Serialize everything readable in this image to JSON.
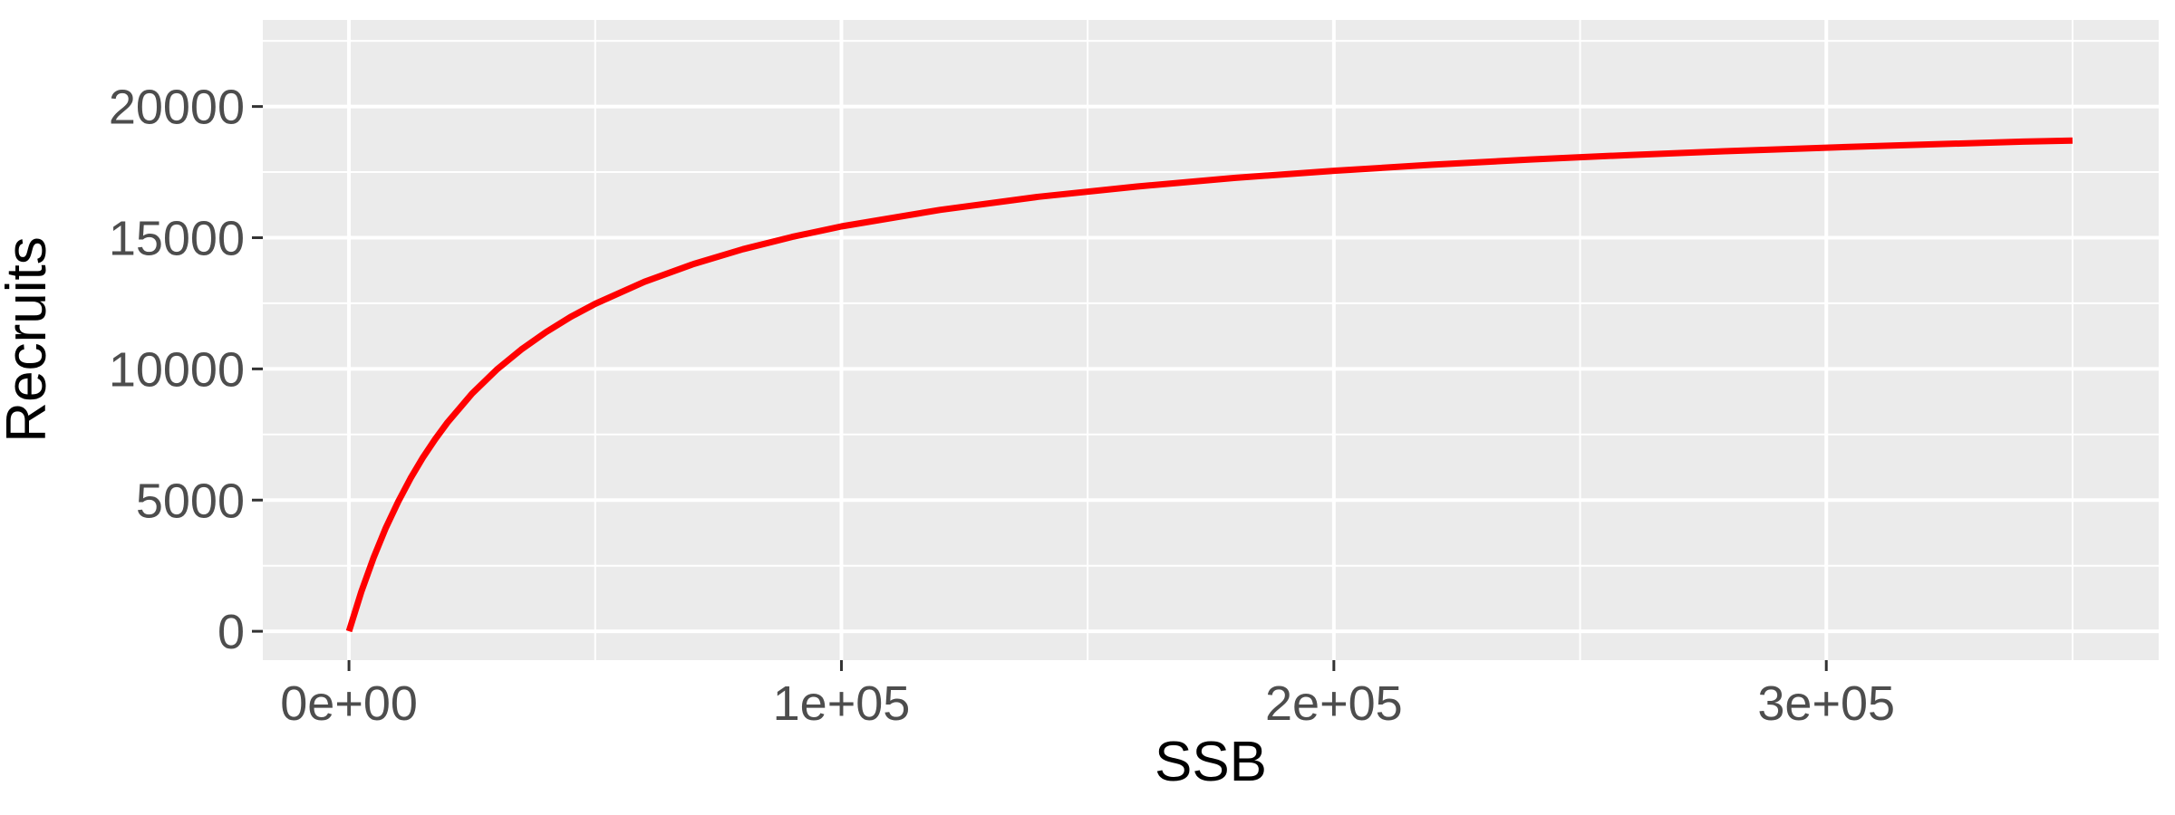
{
  "chart_data": {
    "type": "line",
    "title": "",
    "xlabel": "SSB",
    "ylabel": "Recruits",
    "xlim": [
      -17500,
      367500
    ],
    "ylim": [
      -1100,
      23300
    ],
    "x_ticks": [
      0,
      100000,
      200000,
      300000
    ],
    "x_tick_labels": [
      "0e+00",
      "1e+05",
      "2e+05",
      "3e+05"
    ],
    "x_minor_ticks": [
      50000,
      150000,
      250000,
      350000
    ],
    "y_ticks": [
      0,
      5000,
      10000,
      15000,
      20000
    ],
    "y_tick_labels": [
      "0",
      "5000",
      "10000",
      "15000",
      "20000"
    ],
    "y_minor_ticks": [
      2500,
      7500,
      12500,
      17500,
      22500
    ],
    "grid": true,
    "colors": {
      "panel_background": "#ebebeb",
      "grid": "#ffffff",
      "line": "#ff0000"
    },
    "series": [
      {
        "x": [
          0,
          2500,
          5000,
          7500,
          10000,
          12500,
          15000,
          17500,
          20000,
          25000,
          30000,
          35000,
          40000,
          45000,
          50000,
          60000,
          70000,
          80000,
          90000,
          100000,
          120000,
          140000,
          160000,
          180000,
          200000,
          220000,
          240000,
          260000,
          280000,
          300000,
          320000,
          340000,
          350000
        ],
        "y": [
          0,
          1510,
          2810,
          3950,
          4940,
          5830,
          6620,
          7320,
          7960,
          9060,
          9970,
          10740,
          11400,
          11980,
          12480,
          13320,
          14000,
          14560,
          15030,
          15430,
          16060,
          16560,
          16950,
          17280,
          17550,
          17780,
          17980,
          18150,
          18300,
          18430,
          18550,
          18660,
          18700
        ]
      }
    ]
  }
}
